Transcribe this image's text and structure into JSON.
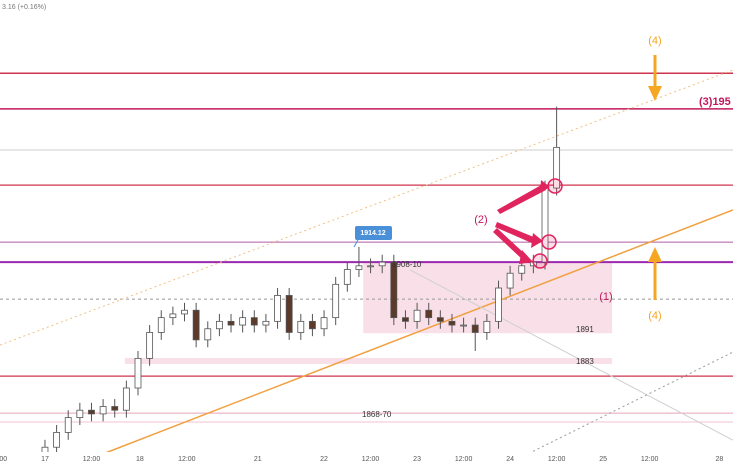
{
  "chart_data": {
    "type": "candlestick",
    "header": "3.16 (+0.16%)",
    "xlim": [
      -11.6,
      177.5
    ],
    "ylim": [
      1855.2,
      1980.8
    ],
    "xticks": [
      {
        "value": -11,
        "label": ":00"
      },
      {
        "value": 0,
        "label": "17"
      },
      {
        "value": 12,
        "label": "12:00"
      },
      {
        "value": 24.5,
        "label": "18"
      },
      {
        "value": 36.6,
        "label": "12:00"
      },
      {
        "value": 54.9,
        "label": "21"
      },
      {
        "value": 72,
        "label": "22"
      },
      {
        "value": 84,
        "label": "12:00"
      },
      {
        "value": 96,
        "label": "23"
      },
      {
        "value": 108,
        "label": "12:00"
      },
      {
        "value": 120,
        "label": "24"
      },
      {
        "value": 132,
        "label": "12:00"
      },
      {
        "value": 144,
        "label": "25"
      },
      {
        "value": 156,
        "label": "12:00"
      },
      {
        "value": 174,
        "label": "28"
      }
    ],
    "up_color": "#ffffff",
    "down_color": "#5b3a29",
    "x": [
      0,
      3,
      6,
      9,
      12,
      15,
      18,
      21,
      24,
      27,
      30,
      33,
      36,
      39,
      42,
      45,
      48,
      51,
      54,
      57,
      60,
      63,
      66,
      69,
      72,
      75,
      78,
      81,
      84,
      87,
      90,
      93,
      96,
      99,
      102,
      105,
      108,
      111,
      114,
      117,
      120,
      123,
      126,
      129,
      132
    ],
    "open": [
      1857,
      1860,
      1864,
      1868,
      1870,
      1869,
      1871,
      1870,
      1876,
      1884,
      1891,
      1895,
      1896,
      1897,
      1889,
      1892,
      1894,
      1893,
      1895,
      1893,
      1894,
      1901,
      1891,
      1894,
      1892,
      1895,
      1904,
      1908,
      1909,
      1909,
      1910,
      1895,
      1894,
      1897,
      1895,
      1894,
      1893,
      1893,
      1891,
      1894,
      1903,
      1907,
      1909,
      1910,
      1930
    ],
    "high": [
      1862,
      1866,
      1870,
      1872,
      1872,
      1873,
      1873,
      1878,
      1886,
      1893,
      1897,
      1898,
      1899,
      1899,
      1894,
      1896,
      1896,
      1897,
      1897,
      1896,
      1903,
      1903,
      1896,
      1896,
      1897,
      1906,
      1910,
      1914.12,
      1911,
      1912,
      1912,
      1897,
      1899,
      1899,
      1897,
      1896,
      1895,
      1895,
      1896,
      1905,
      1909,
      1911,
      1912,
      1932,
      1952
    ],
    "low": [
      1855,
      1858,
      1862,
      1866,
      1867,
      1867,
      1868,
      1868,
      1874,
      1882,
      1889,
      1893,
      1894,
      1887,
      1887,
      1890,
      1891,
      1891,
      1891,
      1891,
      1892,
      1889,
      1889,
      1890,
      1890,
      1893,
      1902,
      1906,
      1907,
      1907,
      1893,
      1892,
      1892,
      1893,
      1892,
      1891,
      1891,
      1886,
      1889,
      1892,
      1901,
      1905,
      1907,
      1908,
      1928
    ],
    "close": [
      1860,
      1864,
      1868,
      1870,
      1869,
      1871,
      1870,
      1876,
      1884,
      1891,
      1895,
      1896,
      1897,
      1889,
      1892,
      1894,
      1893,
      1895,
      1893,
      1894,
      1901,
      1891,
      1894,
      1892,
      1895,
      1904,
      1908,
      1909,
      1909,
      1910,
      1895,
      1894,
      1897,
      1895,
      1894,
      1893,
      1893,
      1891,
      1894,
      1903,
      1907,
      1909,
      1910,
      1930,
      1941
    ],
    "levels": [
      {
        "price": 1961,
        "color": "#d0334e",
        "width": 1.5
      },
      {
        "price": 1951.4,
        "color": "#c2185b",
        "width": 1.5
      },
      {
        "price": 1940.3,
        "color": "#cccccc",
        "width": 1
      },
      {
        "price": 1930.8,
        "color": "#d0334e",
        "width": 1.2
      },
      {
        "price": 1915.4,
        "color": "#b05ca0",
        "width": 1
      },
      {
        "price": 1910,
        "color": "#9c27b0",
        "width": 2
      },
      {
        "price": 1900,
        "color": "#999999",
        "width": 1,
        "dash": true
      },
      {
        "price": 1879.2,
        "color": "#d0334e",
        "width": 1.2
      },
      {
        "price": 1869.2,
        "color": "#e7a3b5",
        "width": 1
      },
      {
        "price": 1866.8,
        "color": "#f2c6d2",
        "width": 1
      }
    ],
    "zones": [
      {
        "x0": 82.1,
        "x1": 146.3,
        "top": 1910,
        "bottom": 1890.8,
        "color": "#f8d7e1"
      },
      {
        "x0": 20.6,
        "x1": 146.3,
        "top": 1884.1,
        "bottom": 1882.5,
        "color": "#f8d7e1"
      }
    ],
    "trendlines": [
      {
        "x0": 14.2,
        "y0": 1857.9,
        "x1": 177.5,
        "y1": 1924.1,
        "color": "#f0a040",
        "width": 1.5
      },
      {
        "x0": -11.6,
        "y0": 1887.6,
        "x1": 177.5,
        "y1": 1961.9,
        "color": "#f0c080",
        "width": 1,
        "dash": true
      },
      {
        "x0": 94.2,
        "y0": 1907.9,
        "x1": 177.5,
        "y1": 1861.9,
        "color": "#cfcfcf",
        "width": 1
      },
      {
        "x0": 121.3,
        "y0": 1856.5,
        "x1": 177.5,
        "y1": 1885.7,
        "color": "#999999",
        "width": 1,
        "dash": true
      }
    ],
    "annotations": [
      "1914.12",
      "1908-10",
      "1891",
      "1883",
      "1868-70",
      "(1)",
      "(2)",
      "(3)195",
      "(4)",
      "(4)"
    ]
  }
}
